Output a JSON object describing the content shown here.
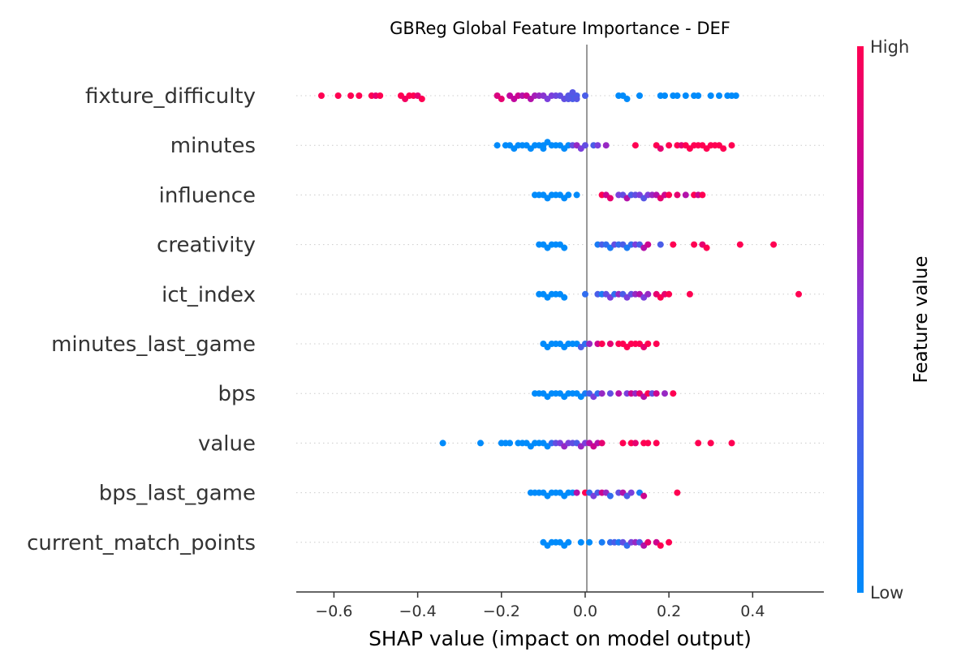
{
  "chart_data": {
    "type": "scatter",
    "subtype": "shap-beeswarm",
    "title": "GBReg Global Feature Importance - DEF",
    "xlabel": "SHAP value (impact on model output)",
    "xlim": [
      -0.69,
      0.57
    ],
    "xticks": [
      -0.6,
      -0.4,
      -0.2,
      0.0,
      0.2,
      0.4
    ],
    "xtick_labels": [
      "−0.6",
      "−0.4",
      "−0.2",
      "0.0",
      "0.2",
      "0.4"
    ],
    "colorbar": {
      "high_label": "High",
      "low_label": "Low",
      "title": "Feature value",
      "low_color": "#008bfb",
      "high_color": "#ff0052"
    },
    "features": [
      {
        "name": "fixture_difficulty",
        "points": [
          [
            -0.63,
            1
          ],
          [
            -0.59,
            1
          ],
          [
            -0.56,
            1
          ],
          [
            -0.54,
            1
          ],
          [
            -0.51,
            1
          ],
          [
            -0.5,
            0.9
          ],
          [
            -0.49,
            1
          ],
          [
            -0.44,
            1
          ],
          [
            -0.43,
            0.95
          ],
          [
            -0.42,
            1
          ],
          [
            -0.41,
            1
          ],
          [
            -0.4,
            0.9
          ],
          [
            -0.39,
            1
          ],
          [
            -0.21,
            0.85
          ],
          [
            -0.2,
            0.9
          ],
          [
            -0.18,
            0.75
          ],
          [
            -0.17,
            0.75
          ],
          [
            -0.16,
            0.8
          ],
          [
            -0.15,
            0.7
          ],
          [
            -0.14,
            0.8
          ],
          [
            -0.13,
            0.7
          ],
          [
            -0.12,
            0.65
          ],
          [
            -0.11,
            0.6
          ],
          [
            -0.1,
            0.55
          ],
          [
            -0.09,
            0.5
          ],
          [
            -0.08,
            0.5
          ],
          [
            -0.07,
            0.45
          ],
          [
            -0.06,
            0.4
          ],
          [
            -0.05,
            0.4
          ],
          [
            -0.04,
            0.35
          ],
          [
            -0.03,
            0.3
          ],
          [
            -0.02,
            0.3
          ],
          [
            -0.03,
            0.3
          ],
          [
            -0.04,
            0.35
          ],
          [
            -0.02,
            0.35
          ],
          [
            -0.03,
            0.35
          ],
          [
            0.0,
            0.3
          ],
          [
            0.08,
            0
          ],
          [
            0.09,
            0
          ],
          [
            0.1,
            0
          ],
          [
            0.13,
            0
          ],
          [
            0.18,
            0
          ],
          [
            0.19,
            0
          ],
          [
            0.21,
            0
          ],
          [
            0.22,
            0
          ],
          [
            0.24,
            0
          ],
          [
            0.26,
            0
          ],
          [
            0.27,
            0
          ],
          [
            0.3,
            0
          ],
          [
            0.32,
            0
          ],
          [
            0.34,
            0
          ],
          [
            0.35,
            0
          ],
          [
            0.36,
            0
          ]
        ]
      },
      {
        "name": "minutes",
        "points": [
          [
            -0.21,
            0
          ],
          [
            -0.19,
            0
          ],
          [
            -0.18,
            0
          ],
          [
            -0.17,
            0
          ],
          [
            -0.16,
            0
          ],
          [
            -0.15,
            0
          ],
          [
            -0.14,
            0
          ],
          [
            -0.13,
            0
          ],
          [
            -0.12,
            0
          ],
          [
            -0.11,
            0
          ],
          [
            -0.1,
            0
          ],
          [
            -0.1,
            0
          ],
          [
            -0.09,
            0
          ],
          [
            -0.08,
            0
          ],
          [
            -0.07,
            0
          ],
          [
            -0.06,
            0
          ],
          [
            -0.05,
            0
          ],
          [
            -0.04,
            0
          ],
          [
            -0.03,
            0.4
          ],
          [
            -0.02,
            0.6
          ],
          [
            -0.01,
            0.5
          ],
          [
            0.0,
            0.4
          ],
          [
            0.02,
            0.3
          ],
          [
            0.03,
            0.5
          ],
          [
            0.05,
            0.6
          ],
          [
            0.12,
            1
          ],
          [
            0.17,
            1
          ],
          [
            0.18,
            0.9
          ],
          [
            0.2,
            1
          ],
          [
            0.22,
            1
          ],
          [
            0.23,
            0.9
          ],
          [
            0.24,
            1
          ],
          [
            0.25,
            1
          ],
          [
            0.26,
            1
          ],
          [
            0.27,
            1
          ],
          [
            0.28,
            1
          ],
          [
            0.29,
            1
          ],
          [
            0.3,
            1
          ],
          [
            0.31,
            1
          ],
          [
            0.32,
            1
          ],
          [
            0.33,
            1
          ],
          [
            0.35,
            1
          ]
        ]
      },
      {
        "name": "influence",
        "points": [
          [
            -0.12,
            0
          ],
          [
            -0.11,
            0
          ],
          [
            -0.1,
            0
          ],
          [
            -0.09,
            0
          ],
          [
            -0.08,
            0
          ],
          [
            -0.07,
            0
          ],
          [
            -0.06,
            0
          ],
          [
            -0.05,
            0
          ],
          [
            -0.04,
            0
          ],
          [
            -0.02,
            0
          ],
          [
            0.04,
            1
          ],
          [
            0.05,
            0.8
          ],
          [
            0.06,
            0.9
          ],
          [
            0.08,
            0.5
          ],
          [
            0.09,
            0.4
          ],
          [
            0.1,
            0.7
          ],
          [
            0.11,
            0.3
          ],
          [
            0.12,
            0.4
          ],
          [
            0.13,
            0.5
          ],
          [
            0.14,
            0.35
          ],
          [
            0.15,
            0.5
          ],
          [
            0.16,
            0.6
          ],
          [
            0.17,
            0.7
          ],
          [
            0.18,
            0.9
          ],
          [
            0.19,
            0.8
          ],
          [
            0.2,
            1
          ],
          [
            0.22,
            0.9
          ],
          [
            0.24,
            0.7
          ],
          [
            0.26,
            1
          ],
          [
            0.27,
            0.8
          ],
          [
            0.28,
            1
          ]
        ]
      },
      {
        "name": "creativity",
        "points": [
          [
            -0.11,
            0
          ],
          [
            -0.1,
            0
          ],
          [
            -0.09,
            0
          ],
          [
            -0.08,
            0
          ],
          [
            -0.07,
            0
          ],
          [
            -0.06,
            0
          ],
          [
            -0.05,
            0
          ],
          [
            0.03,
            0.1
          ],
          [
            0.04,
            0.3
          ],
          [
            0.05,
            0.2
          ],
          [
            0.06,
            0.1
          ],
          [
            0.07,
            0.4
          ],
          [
            0.08,
            0.2
          ],
          [
            0.09,
            0.3
          ],
          [
            0.1,
            0.1
          ],
          [
            0.11,
            0.2
          ],
          [
            0.12,
            0.5
          ],
          [
            0.13,
            0.3
          ],
          [
            0.14,
            0.7
          ],
          [
            0.15,
            0.8
          ],
          [
            0.18,
            0.3
          ],
          [
            0.21,
            1
          ],
          [
            0.26,
            1
          ],
          [
            0.28,
            0.9
          ],
          [
            0.29,
            1
          ],
          [
            0.37,
            1
          ],
          [
            0.45,
            1
          ]
        ]
      },
      {
        "name": "ict_index",
        "points": [
          [
            -0.11,
            0
          ],
          [
            -0.1,
            0
          ],
          [
            -0.09,
            0
          ],
          [
            -0.08,
            0
          ],
          [
            -0.07,
            0
          ],
          [
            -0.06,
            0
          ],
          [
            -0.05,
            0
          ],
          [
            0.0,
            0.2
          ],
          [
            0.03,
            0.3
          ],
          [
            0.04,
            0.1
          ],
          [
            0.05,
            0.4
          ],
          [
            0.06,
            0.5
          ],
          [
            0.07,
            0.2
          ],
          [
            0.08,
            0.6
          ],
          [
            0.09,
            0.3
          ],
          [
            0.1,
            0.5
          ],
          [
            0.11,
            0.4
          ],
          [
            0.12,
            0.6
          ],
          [
            0.13,
            0.7
          ],
          [
            0.14,
            0.5
          ],
          [
            0.15,
            0.6
          ],
          [
            0.17,
            0.9
          ],
          [
            0.18,
            1
          ],
          [
            0.19,
            0.9
          ],
          [
            0.2,
            1
          ],
          [
            0.25,
            1
          ],
          [
            0.51,
            1
          ]
        ]
      },
      {
        "name": "minutes_last_game",
        "points": [
          [
            -0.1,
            0
          ],
          [
            -0.09,
            0
          ],
          [
            -0.08,
            0
          ],
          [
            -0.07,
            0
          ],
          [
            -0.06,
            0
          ],
          [
            -0.05,
            0
          ],
          [
            -0.04,
            0
          ],
          [
            -0.03,
            0
          ],
          [
            -0.02,
            0
          ],
          [
            -0.01,
            0.3
          ],
          [
            0.0,
            0.2
          ],
          [
            0.01,
            0.6
          ],
          [
            0.03,
            0.8
          ],
          [
            0.04,
            1
          ],
          [
            0.06,
            0.9
          ],
          [
            0.08,
            1
          ],
          [
            0.09,
            1
          ],
          [
            0.1,
            1
          ],
          [
            0.11,
            1
          ],
          [
            0.12,
            1
          ],
          [
            0.13,
            1
          ],
          [
            0.14,
            0.9
          ],
          [
            0.15,
            1
          ],
          [
            0.17,
            1
          ]
        ]
      },
      {
        "name": "bps",
        "points": [
          [
            -0.12,
            0
          ],
          [
            -0.11,
            0
          ],
          [
            -0.1,
            0
          ],
          [
            -0.09,
            0
          ],
          [
            -0.08,
            0
          ],
          [
            -0.07,
            0
          ],
          [
            -0.06,
            0
          ],
          [
            -0.05,
            0
          ],
          [
            -0.04,
            0
          ],
          [
            -0.03,
            0
          ],
          [
            -0.02,
            0
          ],
          [
            -0.01,
            0
          ],
          [
            0.0,
            0.1
          ],
          [
            0.01,
            0.3
          ],
          [
            0.02,
            0.5
          ],
          [
            0.03,
            0.2
          ],
          [
            0.04,
            0.6
          ],
          [
            0.06,
            0.4
          ],
          [
            0.08,
            0.7
          ],
          [
            0.1,
            0.5
          ],
          [
            0.11,
            0.8
          ],
          [
            0.12,
            0.6
          ],
          [
            0.13,
            0.9
          ],
          [
            0.14,
            0.7
          ],
          [
            0.15,
            1
          ],
          [
            0.16,
            0.4
          ],
          [
            0.17,
            0.8
          ],
          [
            0.19,
            0.6
          ],
          [
            0.21,
            1
          ]
        ]
      },
      {
        "name": "value",
        "points": [
          [
            -0.34,
            0
          ],
          [
            -0.25,
            0
          ],
          [
            -0.2,
            0
          ],
          [
            -0.19,
            0
          ],
          [
            -0.18,
            0
          ],
          [
            -0.16,
            0
          ],
          [
            -0.15,
            0
          ],
          [
            -0.14,
            0
          ],
          [
            -0.13,
            0
          ],
          [
            -0.12,
            0
          ],
          [
            -0.11,
            0
          ],
          [
            -0.1,
            0
          ],
          [
            -0.09,
            0
          ],
          [
            -0.08,
            0.2
          ],
          [
            -0.07,
            0.4
          ],
          [
            -0.06,
            0.5
          ],
          [
            -0.05,
            0.6
          ],
          [
            -0.04,
            0.5
          ],
          [
            -0.03,
            0.4
          ],
          [
            -0.02,
            0.3
          ],
          [
            -0.01,
            0.6
          ],
          [
            0.0,
            0.5
          ],
          [
            0.01,
            0.7
          ],
          [
            0.02,
            0.8
          ],
          [
            0.03,
            0.7
          ],
          [
            0.04,
            0.9
          ],
          [
            0.09,
            1
          ],
          [
            0.11,
            1
          ],
          [
            0.12,
            0.9
          ],
          [
            0.14,
            1
          ],
          [
            0.15,
            1
          ],
          [
            0.17,
            1
          ],
          [
            0.27,
            1
          ],
          [
            0.3,
            1
          ],
          [
            0.35,
            1
          ]
        ]
      },
      {
        "name": "bps_last_game",
        "points": [
          [
            -0.13,
            0
          ],
          [
            -0.12,
            0
          ],
          [
            -0.11,
            0
          ],
          [
            -0.1,
            0
          ],
          [
            -0.09,
            0
          ],
          [
            -0.08,
            0
          ],
          [
            -0.07,
            0
          ],
          [
            -0.06,
            0
          ],
          [
            -0.05,
            0
          ],
          [
            -0.04,
            0
          ],
          [
            -0.03,
            0
          ],
          [
            -0.02,
            0.7
          ],
          [
            0.0,
            1
          ],
          [
            0.01,
            0.2
          ],
          [
            0.02,
            0.5
          ],
          [
            0.03,
            0.3
          ],
          [
            0.04,
            0.8
          ],
          [
            0.05,
            0.6
          ],
          [
            0.06,
            0.2
          ],
          [
            0.08,
            0.4
          ],
          [
            0.09,
            0.7
          ],
          [
            0.1,
            0.3
          ],
          [
            0.11,
            0.5
          ],
          [
            0.13,
            0.1
          ],
          [
            0.14,
            0.8
          ],
          [
            0.22,
            1
          ]
        ]
      },
      {
        "name": "current_match_points",
        "points": [
          [
            -0.1,
            0
          ],
          [
            -0.09,
            0
          ],
          [
            -0.08,
            0
          ],
          [
            -0.07,
            0
          ],
          [
            -0.06,
            0
          ],
          [
            -0.05,
            0
          ],
          [
            -0.04,
            0
          ],
          [
            -0.01,
            0
          ],
          [
            0.01,
            0
          ],
          [
            0.04,
            0.1
          ],
          [
            0.06,
            0.2
          ],
          [
            0.07,
            0.3
          ],
          [
            0.08,
            0.1
          ],
          [
            0.09,
            0.4
          ],
          [
            0.1,
            0.2
          ],
          [
            0.11,
            0.5
          ],
          [
            0.12,
            0.6
          ],
          [
            0.13,
            0.3
          ],
          [
            0.14,
            0.7
          ],
          [
            0.15,
            0.9
          ],
          [
            0.17,
            0.8
          ],
          [
            0.18,
            1
          ],
          [
            0.2,
            1
          ]
        ]
      }
    ]
  }
}
